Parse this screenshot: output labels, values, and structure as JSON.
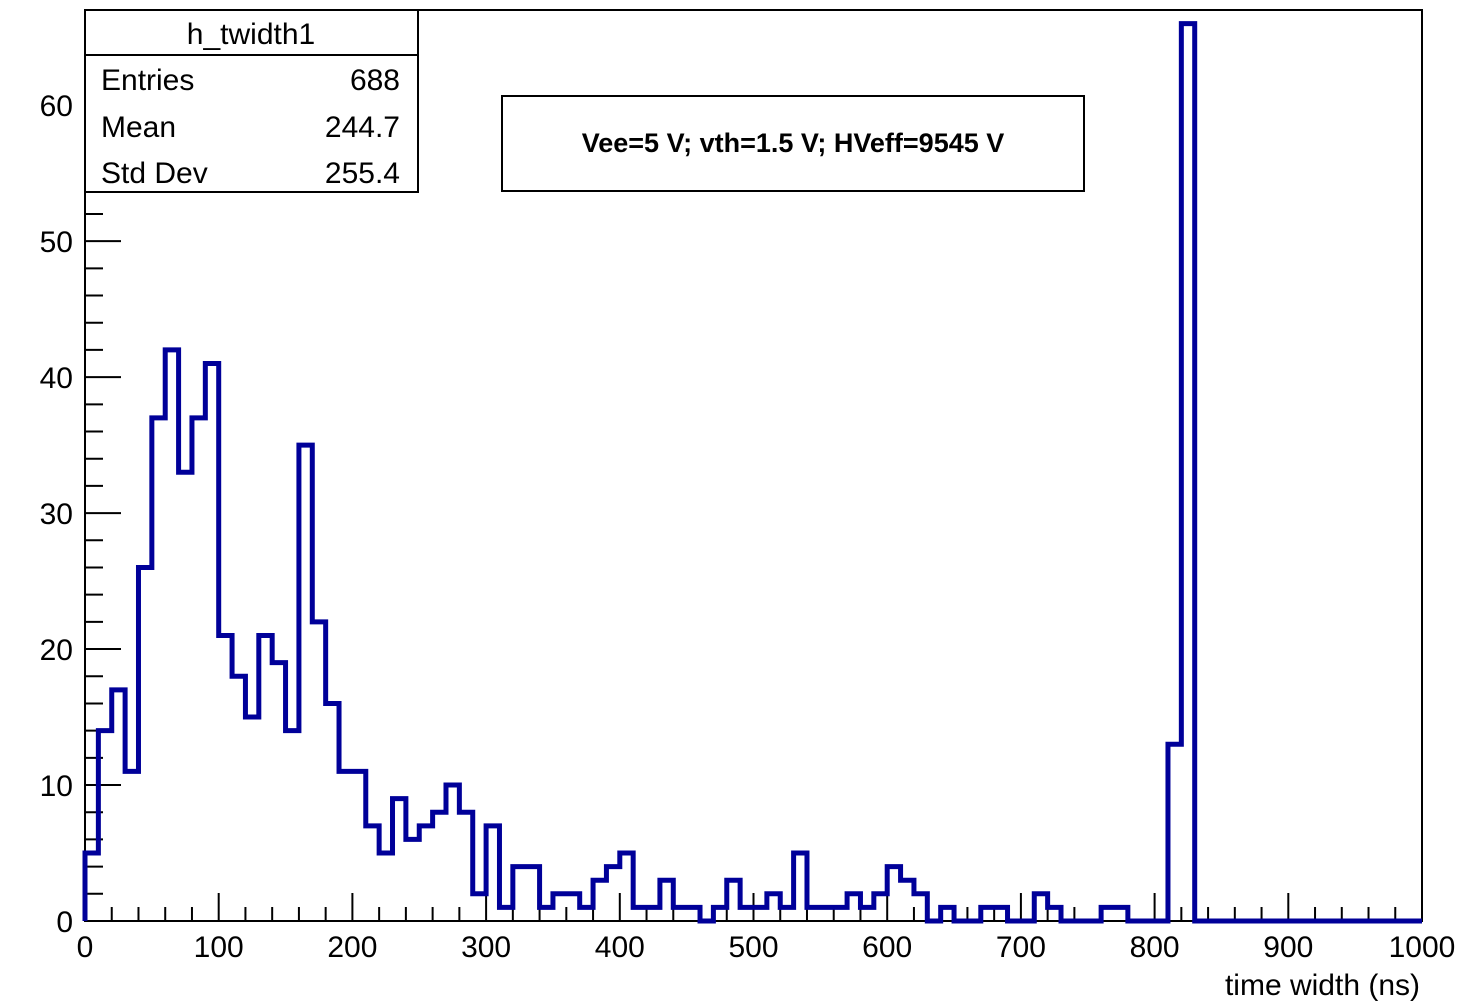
{
  "chart_data": {
    "type": "bar",
    "title": "",
    "xlabel": "time width (ns)",
    "ylabel": "",
    "xlim": [
      0,
      1000
    ],
    "ylim": [
      0,
      67
    ],
    "bin_width": 10,
    "x_ticks": [
      "0",
      "100",
      "200",
      "300",
      "400",
      "500",
      "600",
      "700",
      "800",
      "900",
      "1000"
    ],
    "y_ticks": [
      "0",
      "10",
      "20",
      "30",
      "40",
      "50",
      "60"
    ],
    "grid": false,
    "series": [
      {
        "color": "#000099",
        "values": [
          5,
          14,
          17,
          11,
          26,
          37,
          42,
          33,
          37,
          41,
          21,
          18,
          15,
          21,
          19,
          14,
          35,
          22,
          16,
          11,
          11,
          7,
          5,
          9,
          6,
          7,
          8,
          10,
          8,
          2,
          7,
          1,
          4,
          4,
          1,
          2,
          2,
          1,
          3,
          4,
          5,
          1,
          1,
          3,
          1,
          1,
          0,
          1,
          3,
          1,
          1,
          2,
          1,
          5,
          1,
          1,
          1,
          2,
          1,
          2,
          4,
          3,
          2,
          0,
          1,
          0,
          0,
          1,
          1,
          0,
          0,
          2,
          1,
          0,
          0,
          0,
          1,
          1,
          0,
          0,
          0,
          13,
          66,
          0,
          0,
          0,
          0,
          0,
          0,
          0,
          0,
          0,
          0,
          0,
          0,
          0,
          0,
          0,
          0,
          0
        ]
      }
    ]
  },
  "stats_box": {
    "title": "h_twidth1",
    "rows": [
      {
        "label": "Entries",
        "value": "688"
      },
      {
        "label": "Mean",
        "value": "244.7"
      },
      {
        "label": "Std Dev",
        "value": "255.4"
      }
    ]
  },
  "annotation": "Vee=5 V; vth=1.5 V; HVeff=9545 V"
}
